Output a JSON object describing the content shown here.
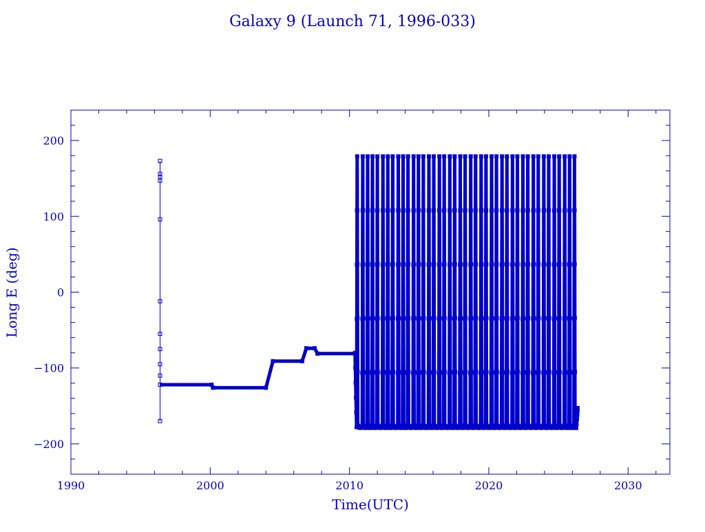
{
  "chart_data": {
    "type": "line",
    "title": "Galaxy 9 (Launch 71, 1996-033)",
    "xlabel": "Time(UTC)",
    "ylabel": "Long E (deg)",
    "xlim": [
      1990,
      2033
    ],
    "ylim": [
      -240,
      240
    ],
    "x_ticks": [
      1990,
      2000,
      2010,
      2020,
      2030
    ],
    "y_ticks": [
      -200,
      -100,
      0,
      100,
      200
    ],
    "grid": false,
    "legend": "none",
    "color": "#0000cc",
    "marker": "square",
    "launch_spike": {
      "x": 1996.4,
      "y_values": [
        -170,
        -122,
        -110,
        -95,
        -75,
        -55,
        -12,
        96,
        147,
        152,
        156,
        173
      ]
    },
    "station_kept": [
      {
        "x": 1996.4,
        "y": -122
      },
      {
        "x": 2000.1,
        "y": -122
      },
      {
        "x": 2000.2,
        "y": -126
      },
      {
        "x": 2004.0,
        "y": -126
      },
      {
        "x": 2004.5,
        "y": -91
      },
      {
        "x": 2006.6,
        "y": -91
      },
      {
        "x": 2006.9,
        "y": -74
      },
      {
        "x": 2007.5,
        "y": -74
      },
      {
        "x": 2007.7,
        "y": -81
      },
      {
        "x": 2010.4,
        "y": -81
      }
    ],
    "drift": {
      "x_start": 2010.4,
      "x_end": 2026.4,
      "y_min": -180,
      "y_max": 180,
      "peak_years": [
        2010.55,
        2010.95,
        2011.3,
        2011.65,
        2012.0,
        2012.4,
        2012.75,
        2013.1,
        2013.5,
        2013.85,
        2014.2,
        2014.6,
        2014.95,
        2015.3,
        2015.7,
        2016.05,
        2016.45,
        2016.8,
        2017.2,
        2017.55,
        2017.95,
        2018.3,
        2018.7,
        2019.05,
        2019.45,
        2019.8,
        2020.2,
        2020.55,
        2020.95,
        2021.3,
        2021.7,
        2022.05,
        2022.45,
        2022.8,
        2023.2,
        2023.55,
        2023.95,
        2024.3,
        2024.7,
        2025.05,
        2025.45,
        2025.8,
        2026.15
      ]
    }
  }
}
